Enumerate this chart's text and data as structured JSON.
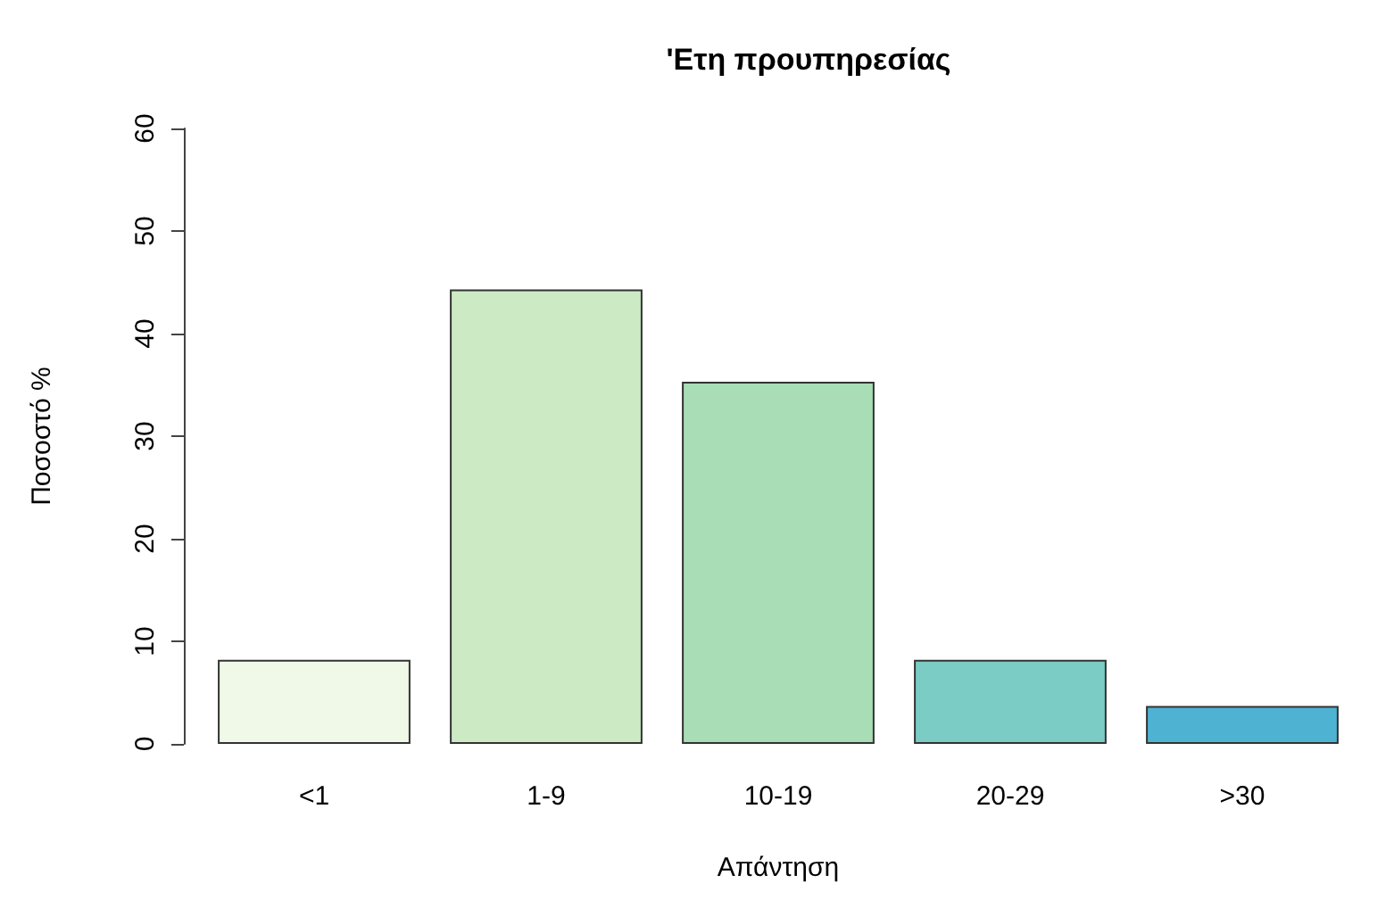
{
  "chart_data": {
    "type": "bar",
    "title": "'Ετη προυπηρεσίας",
    "xlabel": "Απάντηση",
    "ylabel": "Ποσοστό %",
    "categories": [
      "<1",
      "1-9",
      "10-19",
      "20-29",
      ">30"
    ],
    "values": [
      8.2,
      44.3,
      35.3,
      8.2,
      3.7
    ],
    "colors": [
      "#f0f9e8",
      "#ccebc5",
      "#a8ddb5",
      "#7bccc4",
      "#4eb3d3"
    ],
    "ylim": [
      0,
      60
    ],
    "yticks": [
      0,
      10,
      20,
      30,
      40,
      50,
      60
    ]
  }
}
